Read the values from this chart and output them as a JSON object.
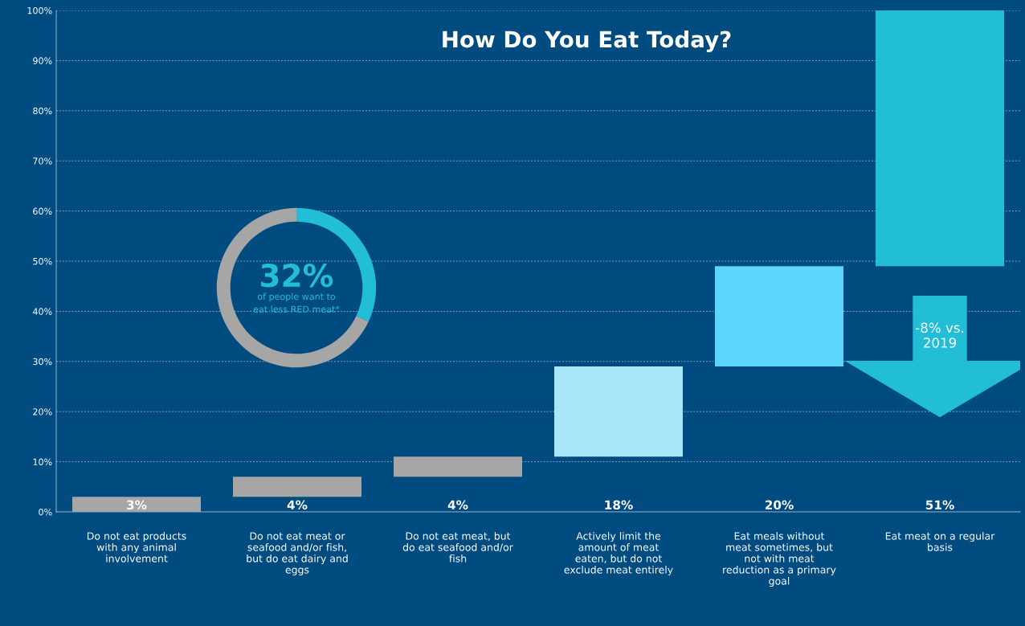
{
  "chart_data": [
    {
      "type": "bar",
      "title": "How Do You Eat Today?",
      "categories": [
        "Do not eat products\nwith any animal\ninvolvement",
        "Do not eat meat or\nseafood and/or fish,\nbut do eat dairy and\neggs",
        "Do not eat meat, but\ndo eat seafood and/or\nfish",
        "Actively limit the\namount of meat\neaten, but do not\nexclude meat entirely",
        "Eat meals without\nmeat sometimes, but\nnot with meat\nreduction as a primary\ngoal",
        "Eat meat on a regular\nbasis"
      ],
      "values": [
        3,
        4,
        4,
        18,
        20,
        51
      ],
      "base": [
        0,
        3,
        7,
        11,
        29,
        49
      ],
      "colors": [
        "#a6a6a6",
        "#a6a6a6",
        "#a6a6a6",
        "#a9e6fa",
        "#5dd4fc",
        "#22bdd7"
      ],
      "ylim": [
        0,
        100
      ],
      "yticks": [
        {
          "value": 0,
          "label": "0%"
        },
        {
          "value": 10,
          "label": "10%"
        },
        {
          "value": 20,
          "label": "20%"
        },
        {
          "value": 30,
          "label": "30%"
        },
        {
          "value": 40,
          "label": "40%"
        },
        {
          "value": 50,
          "label": "50%"
        },
        {
          "value": 60,
          "label": "60%"
        },
        {
          "value": 70,
          "label": "70%"
        },
        {
          "value": 80,
          "label": "80%"
        },
        {
          "value": 90,
          "label": "90%"
        },
        {
          "value": 100,
          "label": "100%"
        }
      ],
      "grid": "y",
      "annotations": [
        "-8% vs.\n2019",
        "3%",
        "4%",
        "4%",
        "18%",
        "20%",
        "51%"
      ]
    },
    {
      "type": "donut",
      "categories": [
        null,
        null
      ],
      "values": [
        32,
        68
      ],
      "colors": [
        "#22bdd7",
        "#a6a6a6"
      ],
      "annotations": [
        "32%",
        "of people want to\neat less RED meat*"
      ]
    }
  ]
}
